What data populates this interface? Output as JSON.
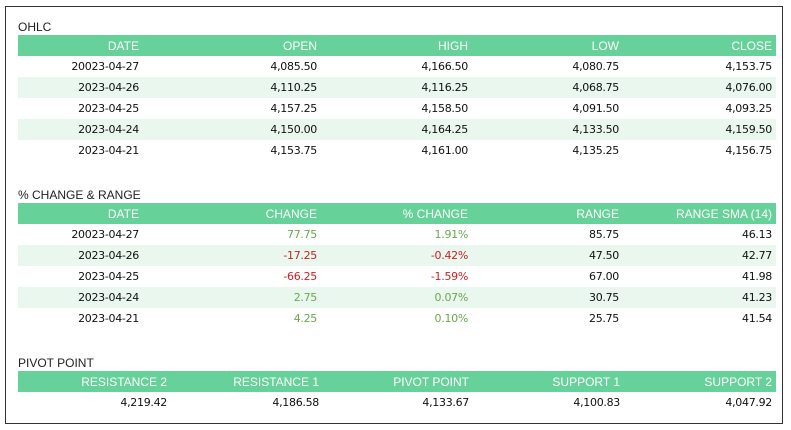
{
  "ohlc": {
    "title": "OHLC",
    "headers": [
      "DATE",
      "OPEN",
      "HIGH",
      "LOW",
      "CLOSE"
    ],
    "rows": [
      [
        "20023-04-27",
        "4,085.50",
        "4,166.50",
        "4,080.75",
        "4,153.75"
      ],
      [
        "2023-04-26",
        "4,110.25",
        "4,116.25",
        "4,068.75",
        "4,076.00"
      ],
      [
        "2023-04-25",
        "4,157.25",
        "4,158.50",
        "4,091.50",
        "4,093.25"
      ],
      [
        "2023-04-24",
        "4,150.00",
        "4,164.25",
        "4,133.50",
        "4,159.50"
      ],
      [
        "2023-04-21",
        "4,153.75",
        "4,161.00",
        "4,135.25",
        "4,156.75"
      ]
    ]
  },
  "change_range": {
    "title": "% CHANGE & RANGE",
    "headers": [
      "DATE",
      "CHANGE",
      "% CHANGE",
      "RANGE",
      "RANGE SMA (14)"
    ],
    "rows": [
      [
        "20023-04-27",
        "77.75",
        "1.91%",
        "85.75",
        "46.13"
      ],
      [
        "2023-04-26",
        "-17.25",
        "-0.42%",
        "47.50",
        "42.77"
      ],
      [
        "2023-04-25",
        "-66.25",
        "-1.59%",
        "67.00",
        "41.98"
      ],
      [
        "2023-04-24",
        "2.75",
        "0.07%",
        "30.75",
        "41.23"
      ],
      [
        "2023-04-21",
        "4.25",
        "0.10%",
        "25.75",
        "41.54"
      ]
    ]
  },
  "pivot": {
    "title": "PIVOT POINT",
    "headers": [
      "RESISTANCE 2",
      "RESISTANCE 1",
      "PIVOT POINT",
      "SUPPORT 1",
      "SUPPORT 2"
    ],
    "values": [
      "4,219.42",
      "4,186.58",
      "4,133.67",
      "4,100.83",
      "4,047.92"
    ]
  },
  "colors": {
    "header_bg": "#66d29a",
    "alt_row_bg": "#e9f7ef",
    "positive": "#6aa84f",
    "negative": "#cc2222"
  }
}
